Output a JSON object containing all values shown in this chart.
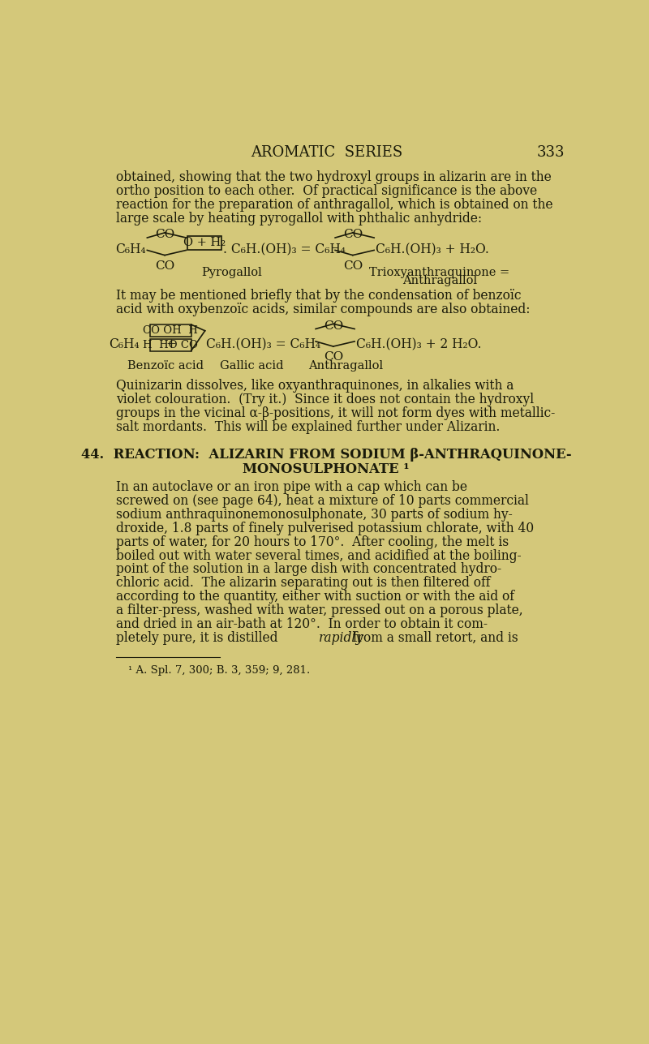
{
  "background_color": "#d4c87a",
  "text_color": "#1a1a0a",
  "header_title": "AROMATIC  SERIES",
  "header_page": "333",
  "paragraph1": "obtained, showing that the two hydroxyl groups in alizarin are in the\northo position to each other.  Of practical significance is the above\nreaction for the preparation of anthragallol, which is obtained on the\nlarge scale by heating pyrogallol with phthalic anhydride:",
  "paragraph2": "It may be mentioned briefly that by the condensation of benzoïc\nacid with oxybenzoïc acids, similar compounds are also obtained:",
  "paragraph3": "Quinizarin dissolves, like oxyanthraquinones, in alkalies with a\nviolet colouration.  (Try it.)  Since it does not contain the hydroxyl\ngroups in the vicinal α-β-positions, it will not form dyes with metallic-\nsalt mordants.  This will be explained further under Alizarin.",
  "section_header_line1": "44.  REACTION:  ALIZARIN FROM SODIUM β-ANTHRAQUINONE-",
  "section_header_line2": "MONOSULPHONATE ¹",
  "paragraph4_lines": [
    "In an autoclave or an iron pipe with a cap which can be",
    "screwed on (see page 64), heat a mixture of 10 parts commercial",
    "sodium anthraquinonemonosulphonate, 30 parts of sodium hy-",
    "droxide, 1.8 parts of finely pulverised potassium chlorate, with 40",
    "parts of water, for 20 hours to 170°.  After cooling, the melt is",
    "boiled out with water several times, and acidified at the boiling-",
    "point of the solution in a large dish with concentrated hydro-",
    "chloric acid.  The alizarin separating out is then filtered off",
    "according to the quantity, either with suction or with the aid of",
    "a filter-press, washed with water, pressed out on a porous plate,",
    "and dried in an air-bath at 120°.  In order to obtain it com-",
    "pletely pure, it is distilled"
  ],
  "paragraph4_italic": "rapidly",
  "paragraph4_end": "from a small retort, and is",
  "footnote": "¹ A. Spl. 7, 300; B. 3, 359; 9, 281."
}
